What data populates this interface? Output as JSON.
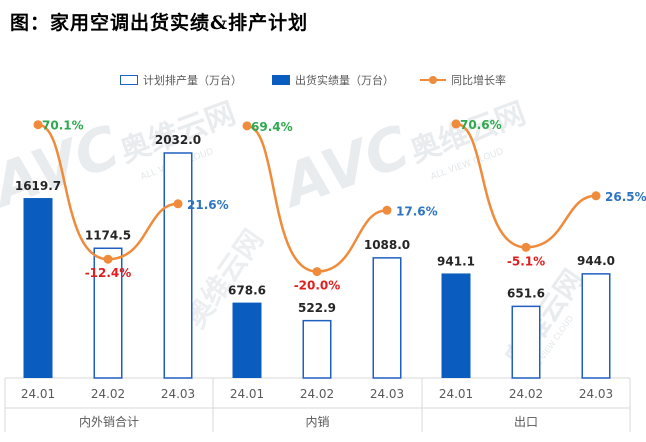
{
  "title": "图：家用空调出货实绩&排产计划",
  "colors": {
    "plan_bar_border": "#1f5fbf",
    "actual_bar_fill": "#0a5cbf",
    "line": "#ef8b3a",
    "positive_label": "#2fa84f",
    "negative_label": "#e01e1e",
    "last_rate_label": "#2e74c0",
    "bar_label": "#262626",
    "axis_text": "#595959",
    "grid": "#d9d9d9"
  },
  "watermark": {
    "brand": "AVC",
    "cn": "奥维云网",
    "en": "ALL VIEW CLOUD"
  },
  "chart_data": {
    "type": "bar",
    "title": "图：家用空调出货实绩&排产计划",
    "legend_position": "top",
    "grid": false,
    "groups": [
      "内外销合计",
      "内销",
      "出口"
    ],
    "categories": [
      "24.01",
      "24.02",
      "24.03",
      "24.01",
      "24.02",
      "24.03",
      "24.01",
      "24.02",
      "24.03"
    ],
    "series": [
      {
        "name": "计划排产量（万台）",
        "style": "hollow-bar",
        "values": [
          null,
          1174.5,
          2032.0,
          null,
          522.9,
          1088.0,
          null,
          651.6,
          944.0
        ],
        "labels": [
          "",
          "1174.5",
          "2032.0",
          "",
          "522.9",
          "1088.0",
          "",
          "651.6",
          "944.0"
        ]
      },
      {
        "name": "出货实绩量（万台）",
        "style": "solid-bar",
        "values": [
          1619.7,
          null,
          null,
          678.6,
          null,
          null,
          941.1,
          null,
          null
        ],
        "labels": [
          "1619.7",
          "",
          "",
          "678.6",
          "",
          "",
          "941.1",
          "",
          ""
        ]
      },
      {
        "name": "同比增长率",
        "style": "line",
        "values": [
          70.1,
          -12.4,
          21.6,
          69.4,
          -20.0,
          17.6,
          70.6,
          -5.1,
          26.5
        ],
        "labels": [
          "70.1%",
          "-12.4%",
          "21.6%",
          "69.4%",
          "-20.0%",
          "17.6%",
          "70.6%",
          "-5.1%",
          "26.5%"
        ]
      }
    ],
    "ylim": [
      0,
      2200
    ],
    "y2lim": [
      -40,
      80
    ],
    "xlabel": "",
    "ylabel": ""
  }
}
